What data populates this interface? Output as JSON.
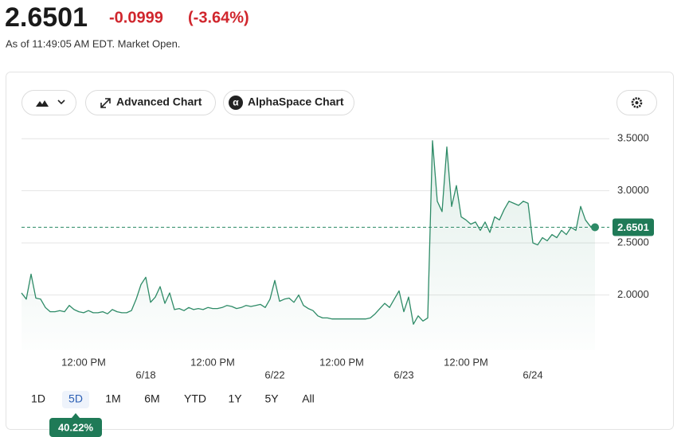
{
  "header": {
    "price": "2.6501",
    "change": "-0.0999",
    "change_pct": "(-3.64%)",
    "as_of": "As of 11:49:05 AM EDT. Market Open."
  },
  "toolbar": {
    "advanced": "Advanced Chart",
    "alphaspace": "AlphaSpace Chart"
  },
  "chart_data": {
    "type": "line",
    "color": "#2e8b67",
    "values": [
      2.02,
      1.96,
      2.2,
      1.97,
      1.96,
      1.88,
      1.84,
      1.84,
      1.85,
      1.84,
      1.9,
      1.86,
      1.84,
      1.83,
      1.85,
      1.83,
      1.83,
      1.84,
      1.82,
      1.86,
      1.84,
      1.83,
      1.83,
      1.85,
      1.96,
      2.1,
      2.17,
      1.93,
      1.98,
      2.08,
      1.92,
      2.02,
      1.86,
      1.87,
      1.85,
      1.88,
      1.86,
      1.87,
      1.86,
      1.88,
      1.87,
      1.87,
      1.88,
      1.9,
      1.89,
      1.87,
      1.88,
      1.9,
      1.89,
      1.9,
      1.91,
      1.88,
      1.96,
      2.14,
      1.94,
      1.96,
      1.97,
      1.93,
      2.0,
      1.9,
      1.87,
      1.85,
      1.8,
      1.78,
      1.78,
      1.77,
      1.77,
      1.77,
      1.77,
      1.77,
      1.77,
      1.77,
      1.77,
      1.78,
      1.82,
      1.87,
      1.92,
      1.88,
      1.96,
      2.04,
      1.84,
      1.98,
      1.72,
      1.8,
      1.75,
      1.78,
      3.48,
      2.9,
      2.8,
      3.42,
      2.85,
      3.05,
      2.75,
      2.72,
      2.68,
      2.7,
      2.62,
      2.7,
      2.6,
      2.75,
      2.72,
      2.82,
      2.9,
      2.88,
      2.86,
      2.9,
      2.88,
      2.5,
      2.48,
      2.55,
      2.52,
      2.58,
      2.55,
      2.62,
      2.58,
      2.65,
      2.62,
      2.85,
      2.72,
      2.66,
      2.65
    ],
    "xlim": [
      0,
      123
    ],
    "xticks": [
      {
        "value": 13,
        "label": "12:00 PM"
      },
      {
        "value": 40,
        "label": "12:00 PM"
      },
      {
        "value": 67,
        "label": "12:00 PM"
      },
      {
        "value": 93,
        "label": "12:00 PM"
      }
    ],
    "date_ticks": [
      {
        "value": 26,
        "label": "6/18"
      },
      {
        "value": 53,
        "label": "6/22"
      },
      {
        "value": 80,
        "label": "6/23"
      },
      {
        "value": 107,
        "label": "6/24"
      }
    ],
    "ylim": [
      1.47,
      3.7
    ],
    "yticks": [
      {
        "value": 2,
        "label": "2.0000"
      },
      {
        "value": 2.5,
        "label": "2.5000"
      },
      {
        "value": 3,
        "label": "3.0000"
      },
      {
        "value": 3.5,
        "label": "3.5000"
      }
    ],
    "grid": true,
    "last": {
      "value": 2.6501,
      "label": "2.6501"
    }
  },
  "ranges": [
    "1D",
    "5D",
    "1M",
    "6M",
    "YTD",
    "1Y",
    "5Y",
    "All"
  ],
  "selected_range": 1,
  "range_change": "40.22%"
}
